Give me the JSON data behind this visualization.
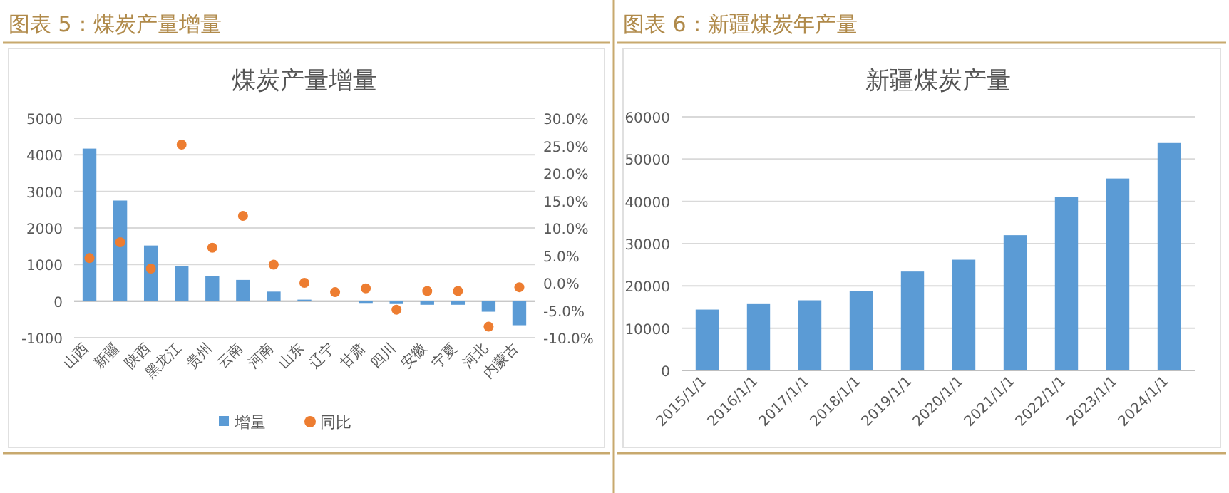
{
  "chart_data": [
    {
      "type": "bar",
      "title": "煤炭产量增量",
      "annotations": [
        "图表 5：煤炭产量增量"
      ],
      "categories": [
        "山西",
        "新疆",
        "陕西",
        "黑龙江",
        "贵州",
        "云南",
        "河南",
        "山东",
        "辽宁",
        "甘肃",
        "四川",
        "安徽",
        "宁夏",
        "河北",
        "内蒙古"
      ],
      "series": [
        {
          "name": "增量",
          "color": "#5b9bd5",
          "values": [
            4170,
            2750,
            1520,
            950,
            690,
            580,
            260,
            40,
            10,
            -70,
            -80,
            -100,
            -100,
            -290,
            -660
          ]
        },
        {
          "name": "同比",
          "type": "scatter",
          "marker": "circle",
          "axis": "y2",
          "color": "#ed7d31",
          "values": [
            4.5,
            7.4,
            2.6,
            25.2,
            6.4,
            12.2,
            3.3,
            0.0,
            -1.7,
            -1.0,
            -4.9,
            -1.5,
            -1.5,
            -8.0,
            -0.8
          ]
        }
      ],
      "ylim": [
        -1000,
        5000
      ],
      "yticks": [
        -1000,
        0,
        1000,
        2000,
        3000,
        4000,
        5000
      ],
      "y2lim": [
        -10,
        30
      ],
      "y2ticks": [
        {
          "value": -10,
          "label": "-10.0%"
        },
        {
          "value": -5,
          "label": "-5.0%"
        },
        {
          "value": 0,
          "label": "0.0%"
        },
        {
          "value": 5,
          "label": "5.0%"
        },
        {
          "value": 10,
          "label": "10.0%"
        },
        {
          "value": 15,
          "label": "15.0%"
        },
        {
          "value": 20,
          "label": "20.0%"
        },
        {
          "value": 25,
          "label": "25.0%"
        },
        {
          "value": 30,
          "label": "30.0%"
        }
      ],
      "grid": "y",
      "legend": "bottom"
    },
    {
      "type": "bar",
      "title": "新疆煤炭产量",
      "annotations": [
        "图表 6：新疆煤炭年产量"
      ],
      "categories": [
        "2015/1/1",
        "2016/1/1",
        "2017/1/1",
        "2018/1/1",
        "2019/1/1",
        "2020/1/1",
        "2021/1/1",
        "2022/1/1",
        "2023/1/1",
        "2024/1/1"
      ],
      "series": [
        {
          "color": "#5b9bd5",
          "values": [
            14400,
            15700,
            16600,
            18800,
            23400,
            26200,
            32000,
            41000,
            45400,
            53800
          ]
        }
      ],
      "ylim": [
        0,
        60000
      ],
      "yticks": [
        0,
        10000,
        20000,
        30000,
        40000,
        50000,
        60000
      ],
      "grid": "y"
    }
  ]
}
